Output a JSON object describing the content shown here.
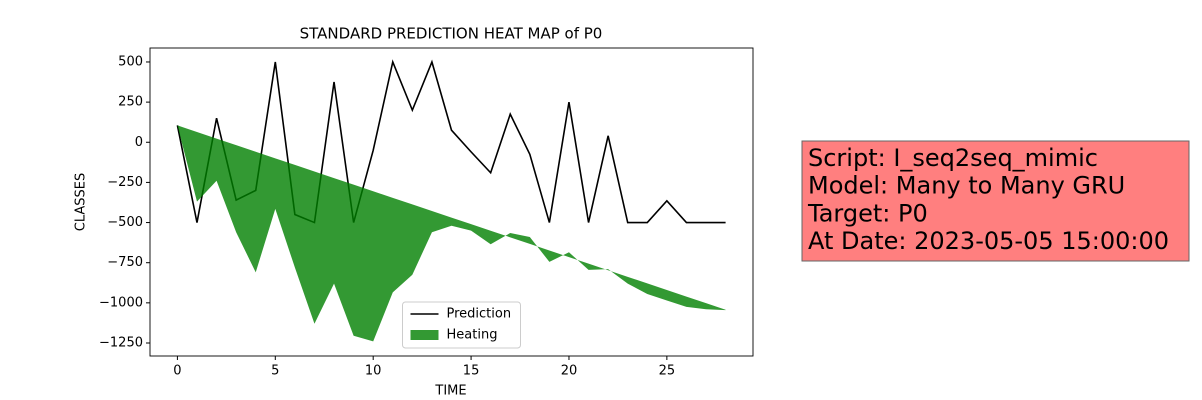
{
  "chart_data": {
    "type": "line",
    "title": "STANDARD PREDICTION HEAT MAP of P0",
    "x_label": "TIME",
    "y_label": "CLASSES",
    "x": [
      0,
      1,
      2,
      3,
      4,
      5,
      6,
      7,
      8,
      9,
      10,
      11,
      12,
      13,
      14,
      15,
      16,
      17,
      18,
      19,
      20,
      21,
      22,
      23,
      24,
      25,
      26,
      27,
      28
    ],
    "series": [
      {
        "name": "Prediction",
        "type": "line",
        "color": "#000000",
        "values": [
          105,
          -500,
          150,
          -360,
          -300,
          500,
          -450,
          -500,
          375,
          -500,
          -50,
          500,
          200,
          500,
          75,
          -60,
          -190,
          175,
          -75,
          -500,
          250,
          -500,
          40,
          -500,
          -500,
          -365,
          -500,
          -500,
          -500
        ]
      },
      {
        "name": "Heating",
        "type": "fill_between",
        "color": "#008000",
        "alpha": 0.8,
        "y1": [
          105,
          64,
          23,
          -18,
          -59,
          -100,
          -141,
          -182,
          -223,
          -264,
          -305,
          -346,
          -387,
          -428,
          -469,
          -510,
          -551,
          -592,
          -633,
          -674,
          -715,
          -756,
          -797,
          -838,
          -879,
          -920,
          -961,
          -1002,
          -1043
        ],
        "y2": [
          105,
          -370,
          -240,
          -560,
          -810,
          -415,
          -780,
          -1130,
          -880,
          -1205,
          -1240,
          -935,
          -825,
          -560,
          -520,
          -550,
          -635,
          -565,
          -590,
          -745,
          -685,
          -795,
          -790,
          -880,
          -945,
          -985,
          -1025,
          -1040,
          -1045
        ]
      }
    ],
    "xlim": [
      -1.4,
      29.4
    ],
    "ylim": [
      -1331,
      587
    ],
    "xticks": [
      0,
      5,
      10,
      15,
      20,
      25
    ],
    "yticks": [
      500,
      250,
      0,
      {
        "value": -250,
        "label": "−250"
      },
      {
        "value": -500,
        "label": "−500"
      },
      {
        "value": -750,
        "label": "−750"
      },
      {
        "value": -1000,
        "label": "−1000"
      },
      {
        "value": -1250,
        "label": "−1250"
      }
    ],
    "legend": "lower center",
    "annotation": [
      "Script: I_seq2seq_mimic",
      "Model: Many to Many GRU",
      "Target: P0",
      "At Date: 2023-05-05 15:00:00"
    ],
    "annotation_color": "#ff7f7f"
  }
}
